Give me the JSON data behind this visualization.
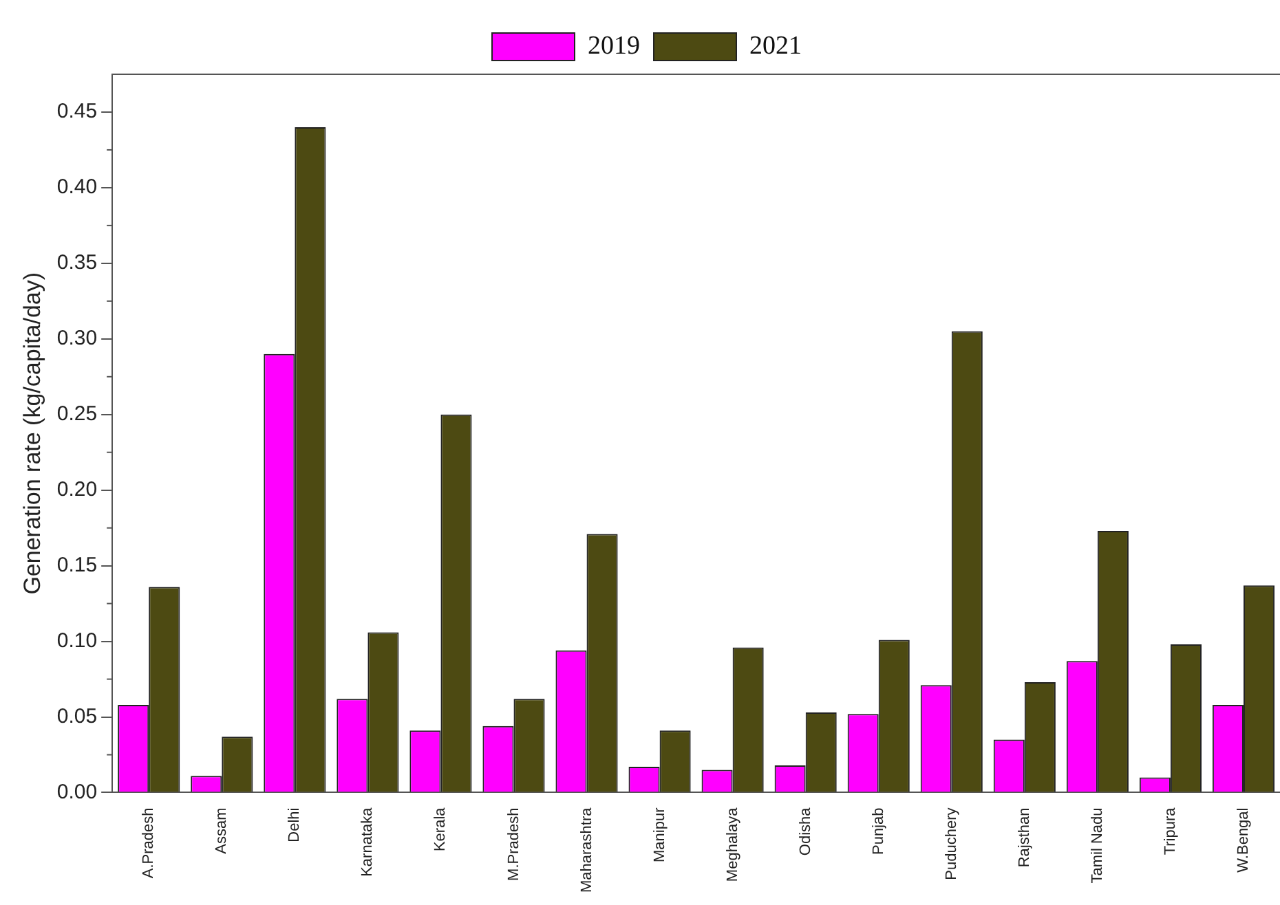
{
  "chart_data": {
    "type": "bar",
    "ylabel": "Generation rate (kg/capita/day)",
    "categories": [
      "A.Pradesh",
      "Assam",
      "Delhi",
      "Karnataka",
      "Kerala",
      "M.Pradesh",
      "Maharashtra",
      "Manipur",
      "Meghalaya",
      "Odisha",
      "Punjab",
      "Puduchery",
      "Rajsthan",
      "Tamil Nadu",
      "Tripura",
      "W.Bengal"
    ],
    "series": [
      {
        "name": "2019",
        "color": "#ff00ff",
        "values": [
          0.058,
          0.011,
          0.29,
          0.062,
          0.041,
          0.044,
          0.094,
          0.017,
          0.015,
          0.018,
          0.052,
          0.071,
          0.035,
          0.087,
          0.01,
          0.058
        ]
      },
      {
        "name": "2021",
        "color": "#4d4a12",
        "values": [
          0.136,
          0.037,
          0.44,
          0.106,
          0.25,
          0.062,
          0.171,
          0.041,
          0.096,
          0.053,
          0.101,
          0.305,
          0.073,
          0.173,
          0.098,
          0.137
        ]
      }
    ],
    "ylim": [
      0,
      0.475
    ],
    "yticks": [
      {
        "value": 0,
        "label": "0.00"
      },
      {
        "value": 0.05,
        "label": "0.05"
      },
      {
        "value": 0.1,
        "label": "0.10"
      },
      {
        "value": 0.15,
        "label": "0.15"
      },
      {
        "value": 0.2,
        "label": "0.20"
      },
      {
        "value": 0.25,
        "label": "0.25"
      },
      {
        "value": 0.3,
        "label": "0.30"
      },
      {
        "value": 0.35,
        "label": "0.35"
      },
      {
        "value": 0.4,
        "label": "0.40"
      },
      {
        "value": 0.45,
        "label": "0.45"
      }
    ],
    "grid": false,
    "legend": "top"
  }
}
